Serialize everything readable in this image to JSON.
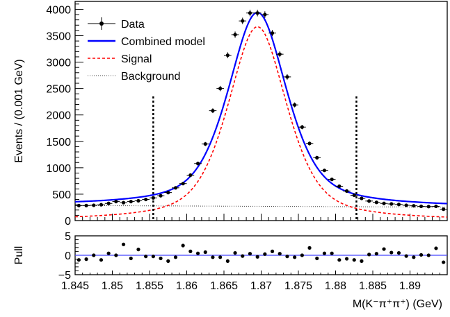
{
  "chart_data": [
    {
      "type": "scatter",
      "panel": "main",
      "xlabel": "M(K⁻π⁺π⁺) (GeV)",
      "ylabel": "Events / (0.001 GeV)",
      "xlim": [
        1.845,
        1.895
      ],
      "ylim": [
        0,
        4150
      ],
      "x_ticks": [
        1.845,
        1.85,
        1.855,
        1.86,
        1.865,
        1.87,
        1.875,
        1.88,
        1.885,
        1.89
      ],
      "x_tick_labels": [
        "1.845",
        "1.85",
        "1.855",
        "1.86",
        "1.865",
        "1.87",
        "1.875",
        "1.88",
        "1.885",
        "1.89"
      ],
      "y_ticks": [
        0,
        500,
        1000,
        1500,
        2000,
        2500,
        3000,
        3500,
        4000
      ],
      "y_tick_labels": [
        "0",
        "500",
        "1000",
        "1500",
        "2000",
        "2500",
        "3000",
        "3500",
        "4000"
      ],
      "legend_position": "top-left",
      "legend": [
        {
          "label": "Data",
          "style": "marker"
        },
        {
          "label": "Combined model",
          "style": "solid",
          "color": "#0000ff"
        },
        {
          "label": "Signal",
          "style": "dashed",
          "color": "#ff0000"
        },
        {
          "label": "Background",
          "style": "dotted",
          "color": "#000000"
        }
      ],
      "signal_window": [
        1.8555,
        1.8828
      ],
      "series": [
        {
          "name": "Data",
          "x": [
            1.8455,
            1.8465,
            1.8475,
            1.8485,
            1.8495,
            1.8505,
            1.8515,
            1.8525,
            1.8535,
            1.8545,
            1.8555,
            1.8565,
            1.8575,
            1.8585,
            1.8595,
            1.8605,
            1.8615,
            1.8625,
            1.8635,
            1.8645,
            1.8655,
            1.8665,
            1.8675,
            1.8685,
            1.8695,
            1.8705,
            1.8715,
            1.8725,
            1.8735,
            1.8745,
            1.8755,
            1.8765,
            1.8775,
            1.8785,
            1.8795,
            1.8805,
            1.8815,
            1.8825,
            1.8835,
            1.8845,
            1.8855,
            1.8865,
            1.8875,
            1.8885,
            1.8895,
            1.8905,
            1.8915,
            1.8925,
            1.8935,
            1.8945
          ],
          "y": [
            285,
            285,
            290,
            300,
            325,
            360,
            340,
            360,
            375,
            400,
            430,
            470,
            530,
            620,
            700,
            860,
            1080,
            1450,
            2080,
            2500,
            3130,
            3520,
            3780,
            3930,
            3930,
            3900,
            3550,
            3150,
            2720,
            2190,
            1770,
            1460,
            1190,
            950,
            780,
            650,
            560,
            480,
            420,
            370,
            345,
            325,
            315,
            305,
            290,
            280,
            270,
            265,
            270,
            215
          ]
        },
        {
          "name": "Combined model",
          "curve": "sum",
          "signal_peak": 3670,
          "mean": 1.8695,
          "sigma": 0.004,
          "gamma": 0.0047,
          "lorentz_fraction": 0.55,
          "background_start": 285,
          "background_end": 255
        }
      ]
    },
    {
      "type": "scatter",
      "panel": "pull",
      "ylabel": "Pull",
      "xlim": [
        1.845,
        1.895
      ],
      "ylim": [
        -5,
        5
      ],
      "y_ticks": [
        -5,
        0,
        5
      ],
      "y_tick_labels": [
        "−5",
        "0",
        "5"
      ],
      "series": [
        {
          "name": "Pull",
          "x": [
            1.8455,
            1.8465,
            1.8475,
            1.8485,
            1.8495,
            1.8505,
            1.8515,
            1.8525,
            1.8535,
            1.8545,
            1.8555,
            1.8565,
            1.8575,
            1.8585,
            1.8595,
            1.8605,
            1.8615,
            1.8625,
            1.8635,
            1.8645,
            1.8655,
            1.8665,
            1.8675,
            1.8685,
            1.8695,
            1.8705,
            1.8715,
            1.8725,
            1.8735,
            1.8745,
            1.8755,
            1.8765,
            1.8775,
            1.8785,
            1.8795,
            1.8805,
            1.8815,
            1.8825,
            1.8835,
            1.8845,
            1.8855,
            1.8865,
            1.8875,
            1.8885,
            1.8895,
            1.8905,
            1.8915,
            1.8925,
            1.8935,
            1.8945
          ],
          "y": [
            -1.2,
            -1.0,
            0.0,
            -1.2,
            0.5,
            0.0,
            2.8,
            -0.8,
            1.5,
            -0.3,
            -0.3,
            -0.8,
            -1.5,
            -0.5,
            2.5,
            1.0,
            0.5,
            0.8,
            -0.5,
            -0.5,
            -1.5,
            0.6,
            -0.2,
            0.4,
            -0.4,
            0.3,
            1.0,
            0.4,
            -0.3,
            -0.5,
            0.0,
            1.9,
            -0.8,
            0.5,
            0.5,
            -1.2,
            -0.9,
            -1.2,
            -1.5,
            0.2,
            0.4,
            1.6,
            0.7,
            0.6,
            -0.2,
            -0.5,
            0.1,
            0.0,
            1.8,
            -1.8
          ]
        }
      ]
    }
  ]
}
